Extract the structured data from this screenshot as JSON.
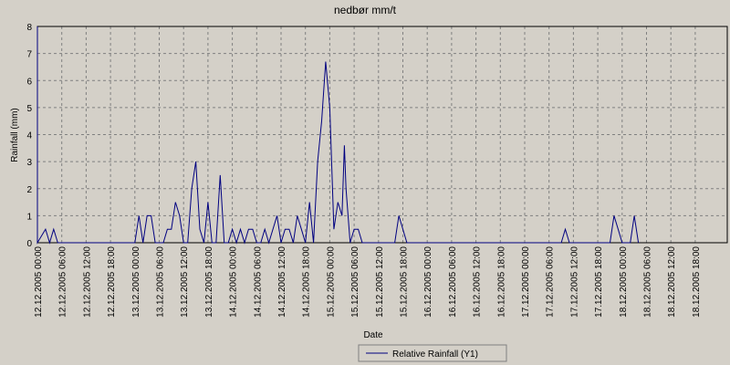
{
  "chart_data": {
    "type": "line",
    "title": "nedbør mm/t",
    "xlabel": "Date",
    "ylabel": "Rainfall (mm)",
    "ylim": [
      0,
      8
    ],
    "y_ticks": [
      "0",
      "1",
      "2",
      "3",
      "4",
      "5",
      "6",
      "7",
      "8"
    ],
    "x_ticks": [
      "12.12.2005 00:00",
      "12.12.2005 06:00",
      "12.12.2005 12:00",
      "12.12.2005 18:00",
      "13.12.2005 00:00",
      "13.12.2005 06:00",
      "13.12.2005 12:00",
      "13.12.2005 18:00",
      "14.12.2005 00:00",
      "14.12.2005 06:00",
      "14.12.2005 12:00",
      "14.12.2005 18:00",
      "15.12.2005 00:00",
      "15.12.2005 06:00",
      "15.12.2005 12:00",
      "15.12.2005 18:00",
      "16.12.2005 00:00",
      "16.12.2005 06:00",
      "16.12.2005 12:00",
      "16.12.2005 18:00",
      "17.12.2005 00:00",
      "17.12.2005 06:00",
      "17.12.2005 12:00",
      "17.12.2005 18:00",
      "18.12.2005 00:00",
      "18.12.2005 06:00",
      "18.12.2005 12:00",
      "18.12.2005 18:00"
    ],
    "grid": true,
    "legend_position": "bottom-center",
    "series": [
      {
        "name": "Relative Rainfall (Y1)",
        "color": "#000080",
        "points": [
          [
            0,
            8
          ],
          [
            0,
            0
          ],
          [
            2,
            0.5
          ],
          [
            3,
            0
          ],
          [
            4,
            0.5
          ],
          [
            5,
            0
          ],
          [
            24,
            0
          ],
          [
            25,
            1
          ],
          [
            26,
            0
          ],
          [
            27,
            1
          ],
          [
            28,
            1
          ],
          [
            29,
            0
          ],
          [
            31,
            0
          ],
          [
            32,
            0.5
          ],
          [
            33,
            0.5
          ],
          [
            34,
            1.5
          ],
          [
            35,
            1
          ],
          [
            36,
            0
          ],
          [
            37,
            0
          ],
          [
            38,
            2
          ],
          [
            39,
            3
          ],
          [
            40,
            0.5
          ],
          [
            41,
            0
          ],
          [
            42,
            1.5
          ],
          [
            43,
            0
          ],
          [
            44,
            0
          ],
          [
            45,
            2.5
          ],
          [
            46,
            0
          ],
          [
            47,
            0
          ],
          [
            48,
            0.5
          ],
          [
            49,
            0
          ],
          [
            50,
            0.5
          ],
          [
            51,
            0
          ],
          [
            52,
            0.5
          ],
          [
            53,
            0.5
          ],
          [
            54,
            0
          ],
          [
            55,
            0
          ],
          [
            56,
            0.5
          ],
          [
            57,
            0
          ],
          [
            59,
            1
          ],
          [
            60,
            0
          ],
          [
            61,
            0.5
          ],
          [
            62,
            0.5
          ],
          [
            63,
            0
          ],
          [
            64,
            1
          ],
          [
            65,
            0.5
          ],
          [
            66,
            0
          ],
          [
            67,
            1.5
          ],
          [
            68,
            0
          ],
          [
            69,
            3
          ],
          [
            70,
            4.5
          ],
          [
            71,
            6.7
          ],
          [
            72,
            5
          ],
          [
            73,
            0.5
          ],
          [
            74,
            1.5
          ],
          [
            75,
            1
          ],
          [
            75.6,
            3.6
          ],
          [
            76,
            2
          ],
          [
            77,
            0
          ],
          [
            78,
            0.5
          ],
          [
            79,
            0.5
          ],
          [
            80,
            0
          ],
          [
            88,
            0
          ],
          [
            89,
            1
          ],
          [
            90,
            0.5
          ],
          [
            91,
            0
          ],
          [
            129,
            0
          ],
          [
            130,
            0.5
          ],
          [
            131,
            0
          ],
          [
            141,
            0
          ],
          [
            142,
            1
          ],
          [
            143,
            0.5
          ],
          [
            144,
            0
          ],
          [
            146,
            0
          ],
          [
            147,
            1
          ],
          [
            148,
            0
          ]
        ]
      }
    ]
  }
}
